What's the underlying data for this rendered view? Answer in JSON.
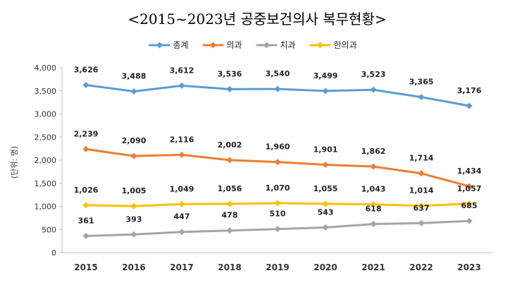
{
  "chart_data": {
    "type": "line",
    "title": "<2015~2023년 공중보건의사 복무현황>",
    "xlabel": "",
    "ylabel": "(단위: 명)",
    "ylim": [
      0,
      4000
    ],
    "yticks": [
      "0",
      "500",
      "1,000",
      "1,500",
      "2,000",
      "2,500",
      "3,000",
      "3,500",
      "4,000"
    ],
    "ytick_values": [
      0,
      500,
      1000,
      1500,
      2000,
      2500,
      3000,
      3500,
      4000
    ],
    "categories": [
      "2015",
      "2016",
      "2017",
      "2018",
      "2019",
      "2020",
      "2021",
      "2022",
      "2023"
    ],
    "legend_position": "top-center",
    "grid": false,
    "series": [
      {
        "name": "총계",
        "color": "#5b9bd5",
        "values": [
          3626,
          3488,
          3612,
          3536,
          3540,
          3499,
          3523,
          3365,
          3176
        ],
        "labels": [
          "3,626",
          "3,488",
          "3,612",
          "3,536",
          "3,540",
          "3,499",
          "3,523",
          "3,365",
          "3,176"
        ]
      },
      {
        "name": "의과",
        "color": "#ed7d31",
        "values": [
          2239,
          2090,
          2116,
          2002,
          1960,
          1901,
          1862,
          1714,
          1434
        ],
        "labels": [
          "2,239",
          "2,090",
          "2,116",
          "2,002",
          "1,960",
          "1,901",
          "1,862",
          "1,714",
          "1,434"
        ]
      },
      {
        "name": "치과",
        "color": "#a5a5a5",
        "values": [
          361,
          393,
          447,
          478,
          510,
          543,
          618,
          637,
          685
        ],
        "labels": [
          "361",
          "393",
          "447",
          "478",
          "510",
          "543",
          "618",
          "637",
          "685"
        ]
      },
      {
        "name": "한의과",
        "color": "#ffc000",
        "values": [
          1026,
          1005,
          1049,
          1056,
          1070,
          1055,
          1043,
          1014,
          1057
        ],
        "labels": [
          "1,026",
          "1,005",
          "1,049",
          "1,056",
          "1,070",
          "1,055",
          "1,043",
          "1,014",
          "1,057"
        ]
      }
    ]
  }
}
